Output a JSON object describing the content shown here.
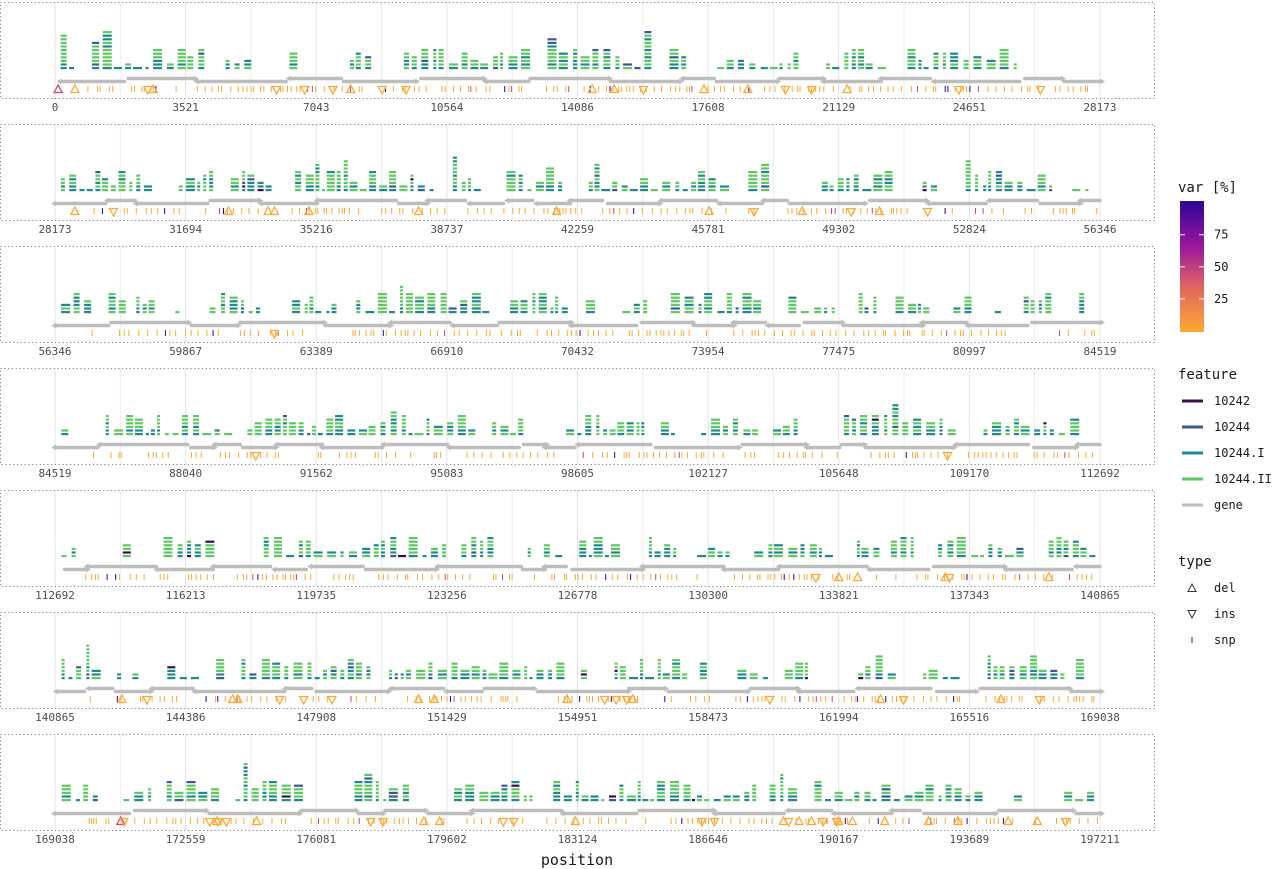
{
  "chart_data": {
    "type": "genome-track",
    "xlabel": "position",
    "colors": {
      "10242": "#3b0f4f",
      "10244": "#3a5a92",
      "10244.I": "#1f8a8a",
      "10244.II": "#5ec962",
      "gene": "#bdbdbd",
      "var_low": "#fea832",
      "var_mid": "#cb4679",
      "var_high": "#2c0594"
    },
    "colorbar": {
      "title": "var [%]",
      "ticks": [
        25,
        50,
        75
      ]
    },
    "legend_feature": {
      "title": "feature",
      "items": [
        "10242",
        "10244",
        "10244.I",
        "10244.II",
        "gene"
      ]
    },
    "legend_type": {
      "title": "type",
      "items": [
        "del",
        "ins",
        "snp"
      ]
    },
    "panels": [
      {
        "ticks": [
          "0",
          "3521",
          "7043",
          "10564",
          "14086",
          "17608",
          "21129",
          "24651",
          "28173"
        ],
        "dels": [
          0.3,
          1.9,
          9.4,
          28.3,
          51.4,
          53.5,
          66.3,
          62.1,
          75.8
        ],
        "ins": [
          8.9,
          21.2,
          23.9,
          26.6,
          31.3,
          33.6,
          69.9,
          72.4,
          86.5,
          94.3,
          56.3
        ]
      },
      {
        "ticks": [
          "28173",
          "31694",
          "35216",
          "38737",
          "42259",
          "45781",
          "49302",
          "52824",
          "56346"
        ],
        "dels": [
          1.9,
          16.6,
          20.4,
          21.0,
          24.3,
          34.8,
          48.0,
          62.6,
          71.5,
          78.9
        ],
        "ins": [
          5.6,
          76.2,
          83.5,
          66.9
        ]
      },
      {
        "ticks": [
          "56346",
          "59867",
          "63389",
          "66910",
          "70432",
          "73954",
          "77475",
          "80997",
          "84519"
        ],
        "dels": [],
        "ins": [
          21.0
        ]
      },
      {
        "ticks": [
          "84519",
          "88040",
          "91562",
          "95083",
          "98605",
          "102127",
          "105648",
          "109170",
          "112692"
        ],
        "dels": [],
        "ins": [
          19.2,
          85.4
        ]
      },
      {
        "ticks": [
          "112692",
          "116213",
          "119735",
          "123256",
          "126778",
          "130300",
          "133821",
          "137343",
          "140865"
        ],
        "dels": [
          75.0,
          76.8,
          85.2,
          95.1
        ],
        "ins": [
          72.8,
          85.6
        ]
      },
      {
        "ticks": [
          "140865",
          "144386",
          "147908",
          "151429",
          "154951",
          "158473",
          "161994",
          "165516",
          "169038"
        ],
        "dels": [
          6.4,
          17.0,
          17.5,
          34.8,
          36.3,
          49.0,
          55.3,
          79.0,
          90.5
        ],
        "ins": [
          8.8,
          21.5,
          23.8,
          26.5,
          52.6,
          53.7,
          54.7,
          68.4,
          81.2,
          94.2
        ]
      },
      {
        "ticks": [
          "169038",
          "172559",
          "176081",
          "179602",
          "183124",
          "186646",
          "190167",
          "193689",
          "197211"
        ],
        "dels": [
          6.3,
          15.5,
          19.3,
          35.3,
          36.8,
          49.8,
          69.7,
          71.2,
          72.4,
          75.0,
          76.3,
          79.4,
          83.6,
          86.4,
          91.2,
          94.0
        ],
        "ins": [
          6.6,
          14.8,
          15.6,
          16.4,
          30.2,
          31.4,
          42.9,
          43.9,
          61.9,
          63.1,
          70.2,
          73.5,
          74.8,
          96.7
        ]
      }
    ]
  }
}
